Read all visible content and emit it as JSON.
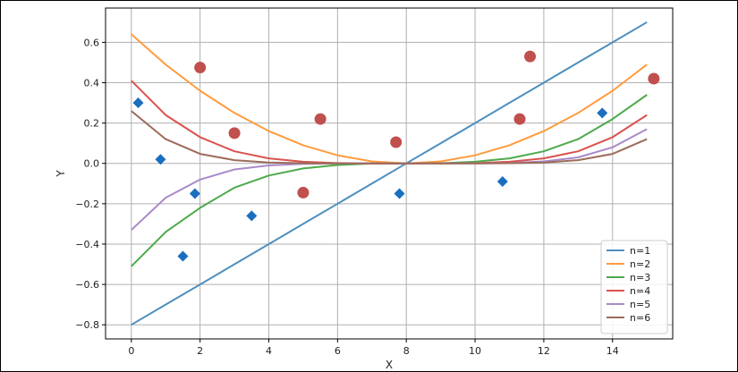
{
  "chart_data": {
    "type": "line",
    "xlabel": "X",
    "ylabel": "Y",
    "xlim": [
      -0.75,
      15.75
    ],
    "ylim": [
      -0.87,
      0.77
    ],
    "xticks": [
      0,
      2,
      4,
      6,
      8,
      10,
      12,
      14
    ],
    "yticks": [
      -0.8,
      -0.6,
      -0.4,
      -0.2,
      0.0,
      0.2,
      0.4,
      0.6
    ],
    "grid": true,
    "legend_position": "bottom-right",
    "x": [
      0,
      1,
      2,
      3,
      4,
      5,
      6,
      7,
      8,
      9,
      10,
      11,
      12,
      13,
      14,
      15
    ],
    "series": [
      {
        "name": "n=1",
        "color": "#4d8fbf",
        "values": [
          -0.8,
          -0.7,
          -0.6,
          -0.5,
          -0.4,
          -0.3,
          -0.2,
          -0.1,
          0.0,
          0.1,
          0.2,
          0.3,
          0.4,
          0.5,
          0.6,
          0.7
        ]
      },
      {
        "name": "n=2",
        "color": "#ff9b3d",
        "values": [
          0.64,
          0.49,
          0.36,
          0.25,
          0.16,
          0.09,
          0.04,
          0.01,
          0.0,
          0.01,
          0.04,
          0.09,
          0.16,
          0.25,
          0.36,
          0.49
        ]
      },
      {
        "name": "n=3",
        "color": "#4caa4c",
        "values": [
          -0.51,
          -0.34,
          -0.22,
          -0.12,
          -0.06,
          -0.025,
          -0.008,
          -0.001,
          0.0,
          0.001,
          0.008,
          0.025,
          0.06,
          0.12,
          0.22,
          0.34
        ]
      },
      {
        "name": "n=4",
        "color": "#d9534f",
        "values": [
          0.41,
          0.24,
          0.13,
          0.06,
          0.025,
          0.008,
          0.0015,
          0.0,
          0.0,
          0.0,
          0.0015,
          0.008,
          0.025,
          0.06,
          0.13,
          0.24
        ]
      },
      {
        "name": "n=5",
        "color": "#a98ac9",
        "values": [
          -0.33,
          -0.17,
          -0.08,
          -0.03,
          -0.01,
          -0.002,
          0.0,
          0.0,
          0.0,
          0.0,
          0.0,
          0.002,
          0.01,
          0.03,
          0.08,
          0.17
        ]
      },
      {
        "name": "n=6",
        "color": "#9c6b5a",
        "values": [
          0.26,
          0.12,
          0.047,
          0.016,
          0.004,
          0.001,
          0.0,
          0.0,
          0.0,
          0.0,
          0.0,
          0.001,
          0.004,
          0.016,
          0.047,
          0.12
        ]
      }
    ],
    "scatter": [
      {
        "marker": "diamond",
        "color": "#1a6fbf",
        "points": [
          [
            0.2,
            0.3
          ],
          [
            0.85,
            0.02
          ],
          [
            1.85,
            -0.15
          ],
          [
            1.5,
            -0.46
          ],
          [
            3.5,
            -0.26
          ],
          [
            7.8,
            -0.15
          ],
          [
            10.8,
            -0.09
          ],
          [
            13.7,
            0.25
          ]
        ]
      },
      {
        "marker": "circle",
        "color": "#c0504d",
        "points": [
          [
            2.0,
            0.475
          ],
          [
            3.0,
            0.15
          ],
          [
            5.5,
            0.22
          ],
          [
            5.0,
            -0.145
          ],
          [
            7.7,
            0.105
          ],
          [
            11.3,
            0.22
          ],
          [
            11.6,
            0.53
          ],
          [
            15.2,
            0.42
          ]
        ]
      }
    ]
  }
}
